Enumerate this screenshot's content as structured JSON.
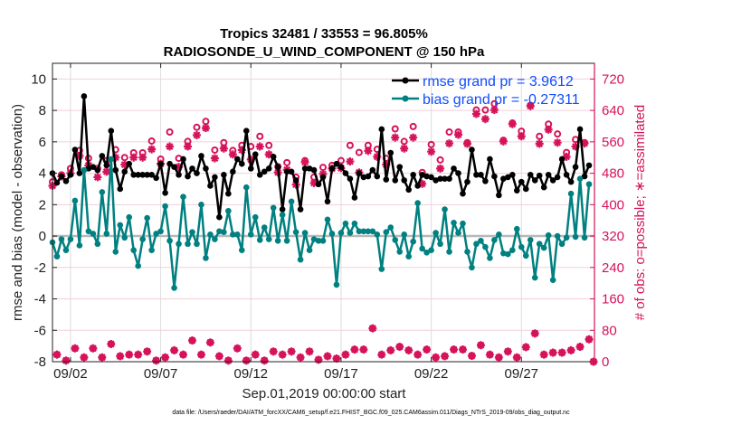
{
  "chart_data": {
    "type": "line",
    "title_line1": "Tropics 32481 / 33553 = 96.805%",
    "title_line2": "RADIOSONDE_U_WIND_COMPONENT @ 150 hPa",
    "xlabel": "Sep.01,2019 00:00:00 start",
    "ylabel": "rmse and bias (model - observation)",
    "ylabel_right": "# of obs: o=possible; ∗=assimilated",
    "footer": "data file: /Users/raeder/DAI/ATM_forcXX/CAM6_setup/f.e21.FHIST_BGC.f09_025.CAM6assim.011/Diags_NTrS_2019-09/obs_diag_output.nc",
    "xlim_days": [
      0,
      30.05
    ],
    "ylim": [
      -8,
      11
    ],
    "ylim_right": [
      0,
      760
    ],
    "x_step_days": 0.25,
    "x_ticks": [
      {
        "day": 1,
        "label": "09/02"
      },
      {
        "day": 6,
        "label": "09/07"
      },
      {
        "day": 11,
        "label": "09/12"
      },
      {
        "day": 16,
        "label": "09/17"
      },
      {
        "day": 21,
        "label": "09/22"
      },
      {
        "day": 26,
        "label": "09/27"
      }
    ],
    "y_ticks": [
      "-8",
      "-6",
      "-4",
      "-2",
      "0",
      "2",
      "4",
      "6",
      "8",
      "10"
    ],
    "y_ticks_right": [
      "0",
      "80",
      "160",
      "240",
      "320",
      "400",
      "480",
      "560",
      "640",
      "720"
    ],
    "grid": true,
    "legend_position": "top-right",
    "colors": {
      "rmse": "#000000",
      "bias": "#008080",
      "obs": "#d6125a",
      "zero": "#b8b8b8",
      "legend_text": "#0f4dff"
    },
    "series": [
      {
        "name": "rmse grand pr = 3.9612",
        "key": "rmse",
        "values": [
          4.0,
          3.4,
          3.8,
          3.5,
          3.9,
          5.5,
          4.0,
          8.9,
          4.3,
          4.4,
          4.2,
          5.1,
          4.5,
          6.7,
          4.2,
          3.0,
          4.1,
          4.6,
          3.9,
          3.9,
          3.9,
          3.9,
          3.9,
          3.7,
          4.6,
          2.75,
          4.6,
          4.4,
          3.9,
          4.9,
          3.8,
          4.3,
          4.0,
          5.1,
          4.3,
          3.2,
          3.75,
          1.2,
          3.9,
          2.7,
          4.1,
          4.9,
          4.6,
          6.7,
          4.3,
          5.2,
          3.9,
          4.1,
          4.3,
          5.05,
          4.4,
          1.7,
          4.1,
          4.1,
          3.55,
          1.7,
          4.3,
          4.3,
          4.2,
          3.3,
          3.75,
          2.2,
          4.3,
          4.6,
          4.4,
          4.0,
          3.65,
          2.45,
          4.0,
          3.75,
          3.8,
          4.2,
          3.8,
          6.8,
          3.6,
          5.3,
          3.55,
          4.4,
          3.55,
          2.95,
          3.9,
          3.2,
          3.9,
          3.8,
          3.75,
          3.55,
          3.65,
          3.65,
          3.65,
          4.3,
          4.0,
          2.7,
          3.45,
          5.5,
          3.9,
          3.9,
          3.5,
          4.9,
          3.8,
          2.6,
          3.65,
          3.75,
          3.9,
          2.9,
          3.45,
          3.0,
          3.9,
          3.55,
          3.85,
          3.1,
          3.9,
          3.55,
          3.75,
          4.9,
          3.9,
          3.45,
          4.4,
          6.8,
          3.8,
          4.5
        ]
      },
      {
        "name": "bias grand pr = -0.27311",
        "key": "bias",
        "values": [
          -0.4,
          -1.3,
          -0.2,
          -0.9,
          -0.2,
          2.25,
          -0.6,
          4.2,
          0.3,
          0.15,
          -0.5,
          2.8,
          0.15,
          4.9,
          -1.0,
          0.7,
          -0.1,
          1.2,
          -0.9,
          -1.9,
          -0.2,
          1.15,
          -0.9,
          0.15,
          0.3,
          1.9,
          -0.3,
          -3.3,
          -0.5,
          2.5,
          -0.5,
          0.25,
          -0.5,
          2.0,
          -1.4,
          0.1,
          -0.2,
          0.3,
          0.25,
          1.6,
          0.1,
          0.1,
          -0.9,
          3.1,
          0.1,
          1.2,
          -0.25,
          0.55,
          -0.2,
          1.8,
          -0.3,
          1.35,
          -0.3,
          2.2,
          0.25,
          -1.5,
          0.2,
          -0.9,
          -0.2,
          -0.3,
          -0.3,
          1.05,
          0.15,
          -3.1,
          0.2,
          0.8,
          0.2,
          0.8,
          0.3,
          0.3,
          0.3,
          0.3,
          0.1,
          -2.1,
          0.25,
          0.55,
          -0.25,
          -1.0,
          0.1,
          -1.3,
          -0.35,
          2.1,
          -0.8,
          -1.05,
          -0.9,
          0.2,
          -0.5,
          1.7,
          -1.0,
          0.85,
          0.2,
          0.8,
          -1.0,
          -2.0,
          -0.5,
          -0.3,
          -0.7,
          -1.4,
          -0.25,
          0.1,
          -1.1,
          -1.15,
          -0.9,
          0.45,
          -0.7,
          -1.25,
          -0.25,
          -2.65,
          -0.5,
          -0.75,
          0.05,
          -2.8,
          0,
          -0.5,
          -0.1,
          2.7,
          -0.05,
          3.65,
          -0.1,
          3.3
        ]
      },
      {
        "name": "possible",
        "key": "possible",
        "axis": "right",
        "values": [
          458,
          18,
          476,
          3,
          492,
          34,
          538,
          11,
          518,
          34,
          492,
          11,
          512,
          45,
          540,
          14,
          520,
          18,
          532,
          18,
          532,
          26,
          562,
          3,
          516,
          11,
          585,
          29,
          518,
          18,
          561,
          54,
          597,
          18,
          612,
          49,
          539,
          14,
          558,
          3,
          538,
          34,
          551,
          3,
          548,
          18,
          574,
          3,
          551,
          26,
          497,
          18,
          507,
          26,
          470,
          11,
          512,
          26,
          470,
          5,
          495,
          14,
          500,
          8,
          512,
          18,
          551,
          31,
          533,
          31,
          551,
          85,
          541,
          18,
          518,
          29,
          593,
          38,
          561,
          29,
          599,
          18,
          482,
          31,
          553,
          11,
          514,
          14,
          585,
          31,
          585,
          31,
          558,
          15,
          641,
          42,
          641,
          18,
          657,
          11,
          564,
          26,
          608,
          11,
          587,
          37,
          653,
          72,
          574,
          18,
          605,
          23,
          580,
          23,
          533,
          29,
          566,
          38,
          558,
          57,
          0
        ]
      },
      {
        "name": "assimilated",
        "key": "assimilated",
        "axis": "right",
        "values": [
          448,
          18,
          472,
          3,
          480,
          34,
          524,
          11,
          500,
          34,
          470,
          11,
          484,
          45,
          520,
          14,
          502,
          18,
          520,
          18,
          520,
          26,
          541,
          3,
          504,
          11,
          548,
          29,
          496,
          18,
          548,
          54,
          577,
          18,
          595,
          49,
          518,
          14,
          543,
          3,
          528,
          34,
          539,
          3,
          515,
          18,
          548,
          3,
          528,
          26,
          482,
          18,
          489,
          26,
          451,
          11,
          508,
          26,
          455,
          5,
          478,
          14,
          492,
          8,
          493,
          18,
          510,
          31,
          482,
          31,
          537,
          85,
          522,
          18,
          502,
          29,
          571,
          38,
          543,
          29,
          571,
          18,
          453,
          31,
          535,
          11,
          492,
          14,
          556,
          31,
          578,
          31,
          555,
          15,
          631,
          42,
          618,
          18,
          641,
          11,
          561,
          26,
          605,
          11,
          574,
          37,
          651,
          72,
          555,
          18,
          591,
          23,
          558,
          23,
          522,
          29,
          548,
          38,
          556,
          57,
          0
        ]
      }
    ]
  }
}
